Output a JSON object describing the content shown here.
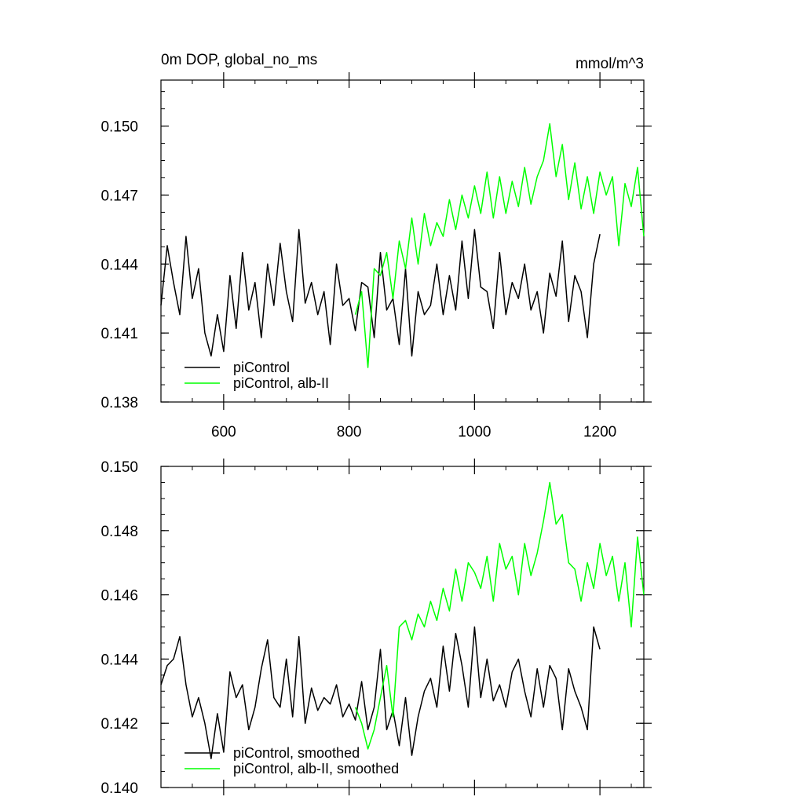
{
  "figure": {
    "title": "0m DOP, global_no_ms",
    "units": "mmol/m^3"
  },
  "chart_data": [
    {
      "type": "line",
      "title": "0m DOP, global_no_ms",
      "units": "mmol/m^3",
      "xlim": [
        500,
        1270
      ],
      "ylim": [
        0.138,
        0.152
      ],
      "xticks": [
        600,
        800,
        1000,
        1200
      ],
      "yticks": [
        0.138,
        0.141,
        0.144,
        0.147,
        0.15
      ],
      "ytick_labels": [
        "0.138",
        "0.141",
        "0.144",
        "0.147",
        "0.150"
      ],
      "legend": {
        "placement": "bottom-left"
      },
      "series": [
        {
          "name": "piControl",
          "color": "#000000",
          "x": [
            500,
            510,
            520,
            530,
            540,
            550,
            560,
            570,
            580,
            590,
            600,
            610,
            620,
            630,
            640,
            650,
            660,
            670,
            680,
            690,
            700,
            710,
            720,
            730,
            740,
            750,
            760,
            770,
            780,
            790,
            800,
            810,
            820,
            830,
            840,
            850,
            860,
            870,
            880,
            890,
            900,
            910,
            920,
            930,
            940,
            950,
            960,
            970,
            980,
            990,
            1000,
            1010,
            1020,
            1030,
            1040,
            1050,
            1060,
            1070,
            1080,
            1090,
            1100,
            1110,
            1120,
            1130,
            1140,
            1150,
            1160,
            1170,
            1180,
            1190,
            1200
          ],
          "y": [
            0.1422,
            0.1448,
            0.1432,
            0.1418,
            0.1452,
            0.1425,
            0.1438,
            0.141,
            0.14,
            0.1418,
            0.1402,
            0.1435,
            0.1412,
            0.1445,
            0.142,
            0.1432,
            0.1408,
            0.144,
            0.1422,
            0.1449,
            0.1428,
            0.1415,
            0.1455,
            0.1423,
            0.1432,
            0.1418,
            0.1428,
            0.1405,
            0.144,
            0.1422,
            0.1425,
            0.1411,
            0.1432,
            0.143,
            0.1408,
            0.1445,
            0.142,
            0.1425,
            0.1405,
            0.1438,
            0.14,
            0.1428,
            0.1418,
            0.1422,
            0.144,
            0.1418,
            0.1435,
            0.142,
            0.145,
            0.1425,
            0.1455,
            0.143,
            0.1428,
            0.1412,
            0.1445,
            0.1418,
            0.1432,
            0.1425,
            0.144,
            0.142,
            0.1428,
            0.141,
            0.1436,
            0.1426,
            0.145,
            0.1415,
            0.1435,
            0.1428,
            0.1408,
            0.144,
            0.1453
          ]
        },
        {
          "name": "piControl, alb-II",
          "color": "#00ff00",
          "x": [
            810,
            820,
            830,
            840,
            850,
            860,
            870,
            880,
            890,
            900,
            910,
            920,
            930,
            940,
            950,
            960,
            970,
            980,
            990,
            1000,
            1010,
            1020,
            1030,
            1040,
            1050,
            1060,
            1070,
            1080,
            1090,
            1100,
            1110,
            1120,
            1130,
            1140,
            1150,
            1160,
            1170,
            1180,
            1190,
            1200,
            1210,
            1220,
            1230,
            1240,
            1250,
            1260,
            1270
          ],
          "y": [
            0.1418,
            0.1428,
            0.1395,
            0.1438,
            0.1435,
            0.1445,
            0.1425,
            0.145,
            0.1438,
            0.146,
            0.144,
            0.1462,
            0.1448,
            0.1458,
            0.1452,
            0.1468,
            0.1455,
            0.147,
            0.146,
            0.1474,
            0.1462,
            0.148,
            0.146,
            0.1478,
            0.1462,
            0.1476,
            0.1465,
            0.1482,
            0.1466,
            0.1478,
            0.1485,
            0.1501,
            0.1478,
            0.1492,
            0.1468,
            0.1484,
            0.1464,
            0.1478,
            0.1462,
            0.148,
            0.147,
            0.1478,
            0.1448,
            0.1475,
            0.1465,
            0.1482,
            0.1452
          ]
        }
      ]
    },
    {
      "type": "line",
      "xlim": [
        500,
        1270
      ],
      "ylim": [
        0.14,
        0.15
      ],
      "xticks": [
        600,
        800,
        1000,
        1200
      ],
      "yticks": [
        0.14,
        0.142,
        0.144,
        0.146,
        0.148,
        0.15
      ],
      "ytick_labels": [
        "0.140",
        "0.142",
        "0.144",
        "0.146",
        "0.148",
        "0.150"
      ],
      "legend": {
        "placement": "bottom-left"
      },
      "series": [
        {
          "name": "piControl, smoothed",
          "color": "#000000",
          "x": [
            500,
            510,
            520,
            530,
            540,
            550,
            560,
            570,
            580,
            590,
            600,
            610,
            620,
            630,
            640,
            650,
            660,
            670,
            680,
            690,
            700,
            710,
            720,
            730,
            740,
            750,
            760,
            770,
            780,
            790,
            800,
            810,
            820,
            830,
            840,
            850,
            860,
            870,
            880,
            890,
            900,
            910,
            920,
            930,
            940,
            950,
            960,
            970,
            980,
            990,
            1000,
            1010,
            1020,
            1030,
            1040,
            1050,
            1060,
            1070,
            1080,
            1090,
            1100,
            1110,
            1120,
            1130,
            1140,
            1150,
            1160,
            1170,
            1180,
            1190,
            1200
          ],
          "y": [
            0.1432,
            0.1438,
            0.144,
            0.1447,
            0.1432,
            0.1422,
            0.1428,
            0.142,
            0.1409,
            0.1423,
            0.1411,
            0.1436,
            0.1428,
            0.1432,
            0.1418,
            0.1425,
            0.1437,
            0.1446,
            0.1428,
            0.1425,
            0.144,
            0.1422,
            0.1447,
            0.142,
            0.1431,
            0.1424,
            0.1428,
            0.1426,
            0.1432,
            0.1422,
            0.1426,
            0.1421,
            0.1433,
            0.1418,
            0.1425,
            0.1443,
            0.1418,
            0.1424,
            0.1413,
            0.1428,
            0.141,
            0.1422,
            0.143,
            0.1434,
            0.1425,
            0.1444,
            0.143,
            0.1448,
            0.1438,
            0.1425,
            0.145,
            0.1428,
            0.144,
            0.1427,
            0.1432,
            0.1425,
            0.1436,
            0.144,
            0.143,
            0.1422,
            0.1437,
            0.1425,
            0.1438,
            0.1434,
            0.1418,
            0.1437,
            0.143,
            0.1425,
            0.1418,
            0.145,
            0.1443
          ]
        },
        {
          "name": "piControl, alb-II, smoothed",
          "color": "#00ff00",
          "x": [
            810,
            820,
            830,
            840,
            850,
            860,
            870,
            880,
            890,
            900,
            910,
            920,
            930,
            940,
            950,
            960,
            970,
            980,
            990,
            1000,
            1010,
            1020,
            1030,
            1040,
            1050,
            1060,
            1070,
            1080,
            1090,
            1100,
            1110,
            1120,
            1130,
            1140,
            1150,
            1160,
            1170,
            1180,
            1190,
            1200,
            1210,
            1220,
            1230,
            1240,
            1250,
            1260,
            1270
          ],
          "y": [
            0.1425,
            0.142,
            0.1412,
            0.1418,
            0.1428,
            0.1438,
            0.1422,
            0.145,
            0.1452,
            0.1446,
            0.1454,
            0.145,
            0.1458,
            0.1452,
            0.1462,
            0.1455,
            0.1468,
            0.1458,
            0.147,
            0.1467,
            0.1462,
            0.1472,
            0.1458,
            0.1476,
            0.1468,
            0.1472,
            0.146,
            0.1476,
            0.1466,
            0.1473,
            0.1483,
            0.1495,
            0.1482,
            0.1485,
            0.147,
            0.1468,
            0.1458,
            0.147,
            0.1462,
            0.1476,
            0.1466,
            0.1472,
            0.1458,
            0.147,
            0.145,
            0.1478,
            0.146
          ]
        }
      ]
    }
  ]
}
